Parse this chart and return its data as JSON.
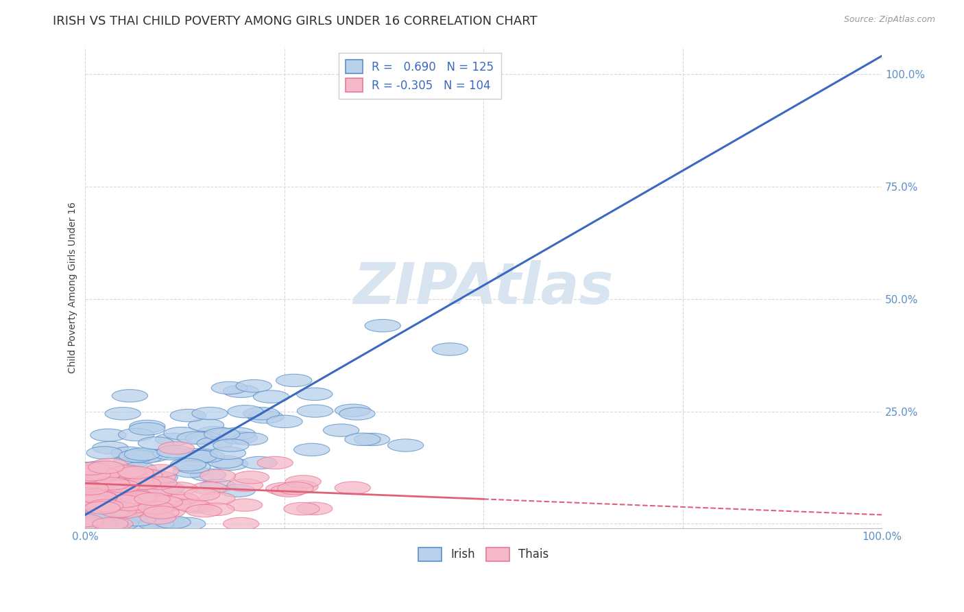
{
  "title": "IRISH VS THAI CHILD POVERTY AMONG GIRLS UNDER 16 CORRELATION CHART",
  "source": "Source: ZipAtlas.com",
  "ylabel": "Child Poverty Among Girls Under 16",
  "xlim": [
    0,
    1
  ],
  "ylim": [
    0,
    1
  ],
  "xticks": [
    0,
    0.25,
    0.5,
    0.75,
    1.0
  ],
  "yticks": [
    0,
    0.25,
    0.5,
    0.75,
    1.0
  ],
  "xticklabels": [
    "0.0%",
    "",
    "",
    "",
    "100.0%"
  ],
  "yticklabels": [
    "",
    "25.0%",
    "50.0%",
    "75.0%",
    "100.0%"
  ],
  "irish_R": 0.69,
  "irish_N": 125,
  "thai_R": -0.305,
  "thai_N": 104,
  "irish_color": "#b8d0ea",
  "thai_color": "#f5b8c8",
  "irish_edge_color": "#5a8fc8",
  "thai_edge_color": "#e8789a",
  "irish_line_color": "#3a6abf",
  "thai_line_color": "#e0607a",
  "watermark_color": "#d8e4f0",
  "background_color": "#ffffff",
  "grid_color": "#d8d8d8",
  "title_fontsize": 13,
  "axis_fontsize": 10,
  "tick_fontsize": 11,
  "legend_fontsize": 12
}
